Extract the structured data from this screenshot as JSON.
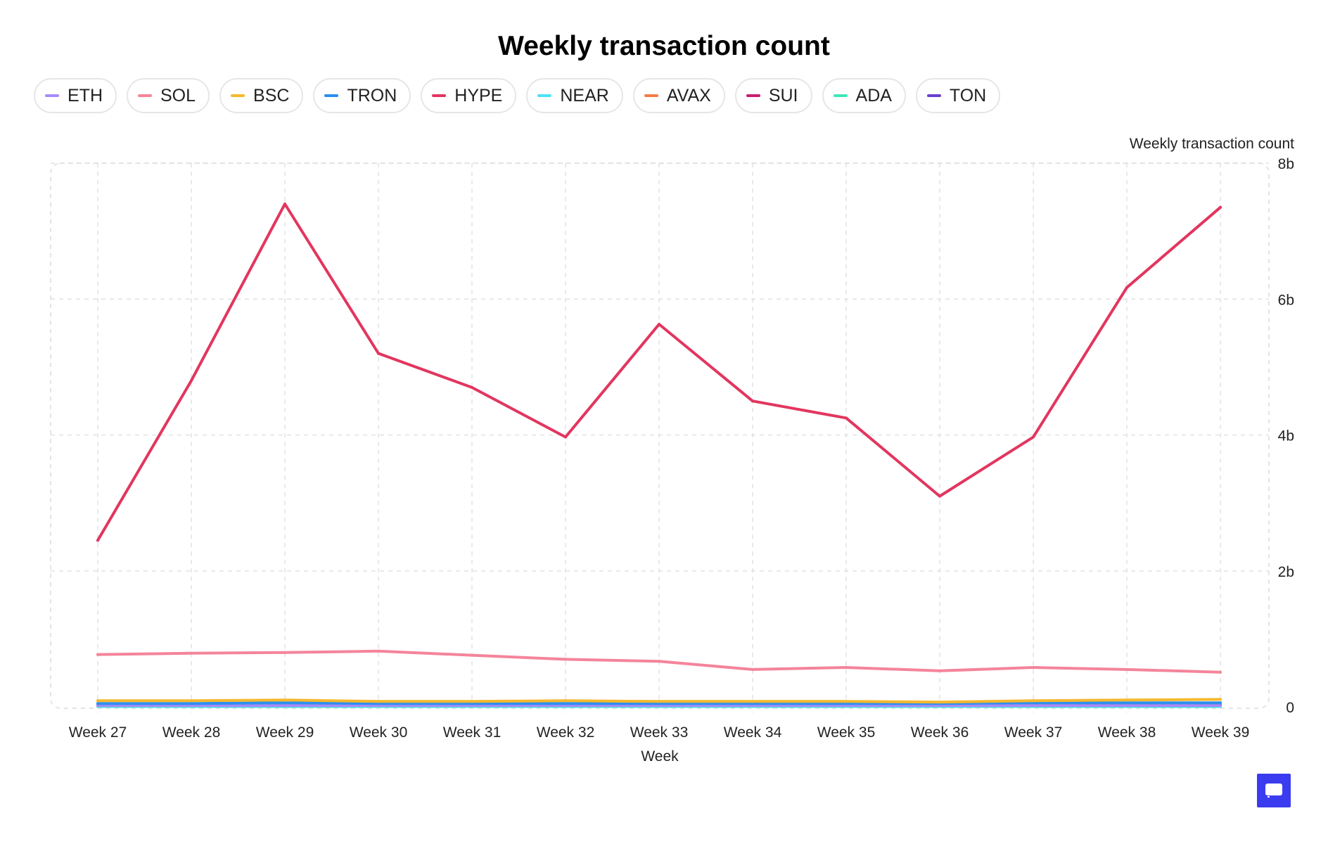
{
  "page": {
    "title": "Weekly transaction count"
  },
  "legend": [
    {
      "label": "ETH",
      "color": "#a78bfa"
    },
    {
      "label": "SOL",
      "color": "#f4849a"
    },
    {
      "label": "BSC",
      "color": "#f5b82e"
    },
    {
      "label": "TRON",
      "color": "#2b8ff0"
    },
    {
      "label": "HYPE",
      "color": "#e2365f"
    },
    {
      "label": "NEAR",
      "color": "#4be3f5"
    },
    {
      "label": "AVAX",
      "color": "#f47c4a"
    },
    {
      "label": "SUI",
      "color": "#c81e6e"
    },
    {
      "label": "ADA",
      "color": "#3fe8b8"
    },
    {
      "label": "TON",
      "color": "#6a3fd0"
    }
  ],
  "chart_data": {
    "type": "line",
    "title": "Weekly transaction count",
    "xlabel": "Week",
    "ylabel": "Weekly transaction count",
    "ylim": [
      0,
      8
    ],
    "y_unit": "b",
    "y_ticks": [
      "0",
      "2b",
      "4b",
      "6b",
      "8b"
    ],
    "y_tick_values": [
      0,
      2,
      4,
      6,
      8
    ],
    "categories": [
      "Week 27",
      "Week 28",
      "Week 29",
      "Week 30",
      "Week 31",
      "Week 32",
      "Week 33",
      "Week 34",
      "Week 35",
      "Week 36",
      "Week 37",
      "Week 38",
      "Week 39"
    ],
    "series": [
      {
        "name": "HYPE",
        "color": "#e2365f",
        "values": [
          2.45,
          4.8,
          7.4,
          5.2,
          4.7,
          3.97,
          5.63,
          4.5,
          4.25,
          3.1,
          3.97,
          6.17,
          7.35
        ]
      },
      {
        "name": "SOL",
        "color": "#f4849a",
        "values": [
          0.77,
          0.79,
          0.8,
          0.82,
          0.76,
          0.7,
          0.67,
          0.55,
          0.58,
          0.53,
          0.58,
          0.55,
          0.51
        ]
      },
      {
        "name": "BSC",
        "color": "#f5b82e",
        "values": [
          0.09,
          0.09,
          0.1,
          0.08,
          0.08,
          0.09,
          0.08,
          0.08,
          0.08,
          0.07,
          0.09,
          0.1,
          0.11
        ]
      },
      {
        "name": "TRON",
        "color": "#2b8ff0",
        "values": [
          0.05,
          0.05,
          0.06,
          0.05,
          0.05,
          0.05,
          0.05,
          0.05,
          0.05,
          0.05,
          0.06,
          0.06,
          0.06
        ]
      },
      {
        "name": "ETH",
        "color": "#a78bfa",
        "values": [
          0.02,
          0.02,
          0.02,
          0.02,
          0.02,
          0.02,
          0.02,
          0.02,
          0.02,
          0.02,
          0.02,
          0.02,
          0.02
        ]
      },
      {
        "name": "NEAR",
        "color": "#4be3f5",
        "values": [
          0.01,
          0.01,
          0.01,
          0.01,
          0.01,
          0.01,
          0.01,
          0.01,
          0.01,
          0.01,
          0.01,
          0.01,
          0.01
        ]
      },
      {
        "name": "AVAX",
        "color": "#f47c4a",
        "values": [
          0.01,
          0.01,
          0.01,
          0.01,
          0.01,
          0.01,
          0.01,
          0.01,
          0.01,
          0.01,
          0.01,
          0.01,
          0.01
        ]
      },
      {
        "name": "SUI",
        "color": "#c81e6e",
        "values": [
          0.03,
          0.03,
          0.03,
          0.03,
          0.03,
          0.03,
          0.03,
          0.03,
          0.03,
          0.03,
          0.03,
          0.03,
          0.03
        ]
      },
      {
        "name": "ADA",
        "color": "#3fe8b8",
        "values": [
          0.005,
          0.005,
          0.005,
          0.005,
          0.005,
          0.005,
          0.005,
          0.005,
          0.005,
          0.005,
          0.005,
          0.005,
          0.005
        ]
      },
      {
        "name": "TON",
        "color": "#6a3fd0",
        "values": [
          0.01,
          0.01,
          0.01,
          0.01,
          0.01,
          0.01,
          0.01,
          0.01,
          0.01,
          0.01,
          0.01,
          0.01,
          0.01
        ]
      }
    ]
  }
}
